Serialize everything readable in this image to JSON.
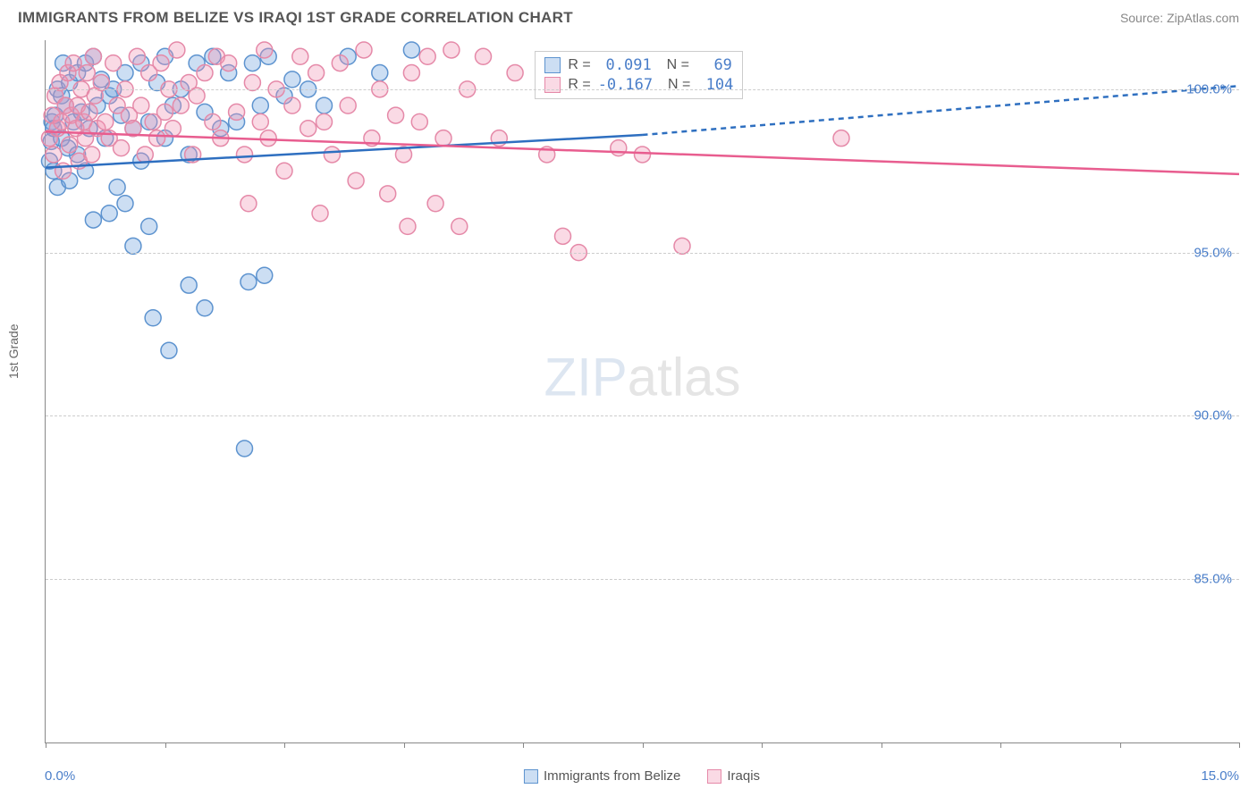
{
  "title": "IMMIGRANTS FROM BELIZE VS IRAQI 1ST GRADE CORRELATION CHART",
  "source": "Source: ZipAtlas.com",
  "ylabel": "1st Grade",
  "watermark": {
    "part1": "ZIP",
    "part2": "atlas"
  },
  "chart": {
    "type": "scatter",
    "xlim": [
      0,
      15
    ],
    "ylim": [
      80,
      101.5
    ],
    "xticks": [
      0,
      1.5,
      3,
      4.5,
      6,
      7.5,
      9,
      10.5,
      12,
      13.5,
      15
    ],
    "yticks": [
      85,
      90,
      95,
      100
    ],
    "ytick_labels": [
      "85.0%",
      "90.0%",
      "95.0%",
      "100.0%"
    ],
    "xmin_label": "0.0%",
    "xmax_label": "15.0%",
    "background": "#ffffff",
    "grid_color": "#cccccc",
    "marker_radius": 9,
    "marker_stroke_width": 1.5,
    "line_width": 2.5,
    "dash_pattern": "6,5"
  },
  "series": [
    {
      "name": "Immigrants from Belize",
      "color_fill": "rgba(110,160,220,0.35)",
      "color_stroke": "#5d93cf",
      "line_color": "#2e6fc0",
      "R": "0.091",
      "N": "69",
      "trend": {
        "x1": 0,
        "y1": 97.6,
        "x2_solid": 7.5,
        "y2_solid": 98.6,
        "x2_dash": 15,
        "y2_dash": 100.1
      },
      "points": [
        [
          0.05,
          97.8
        ],
        [
          0.07,
          98.4
        ],
        [
          0.08,
          99.0
        ],
        [
          0.1,
          97.5
        ],
        [
          0.1,
          98.8
        ],
        [
          0.12,
          99.2
        ],
        [
          0.15,
          100.0
        ],
        [
          0.15,
          97.0
        ],
        [
          0.2,
          98.5
        ],
        [
          0.2,
          99.8
        ],
        [
          0.22,
          100.8
        ],
        [
          0.25,
          99.5
        ],
        [
          0.28,
          98.2
        ],
        [
          0.3,
          100.2
        ],
        [
          0.3,
          97.2
        ],
        [
          0.35,
          99.0
        ],
        [
          0.4,
          100.5
        ],
        [
          0.4,
          98.0
        ],
        [
          0.45,
          99.3
        ],
        [
          0.5,
          100.8
        ],
        [
          0.5,
          97.5
        ],
        [
          0.55,
          98.8
        ],
        [
          0.6,
          101.0
        ],
        [
          0.6,
          96.0
        ],
        [
          0.65,
          99.5
        ],
        [
          0.7,
          100.3
        ],
        [
          0.75,
          98.5
        ],
        [
          0.8,
          99.8
        ],
        [
          0.8,
          96.2
        ],
        [
          0.85,
          100.0
        ],
        [
          0.9,
          97.0
        ],
        [
          0.95,
          99.2
        ],
        [
          1.0,
          100.5
        ],
        [
          1.0,
          96.5
        ],
        [
          1.1,
          98.8
        ],
        [
          1.1,
          95.2
        ],
        [
          1.2,
          100.8
        ],
        [
          1.2,
          97.8
        ],
        [
          1.3,
          99.0
        ],
        [
          1.3,
          95.8
        ],
        [
          1.35,
          93.0
        ],
        [
          1.4,
          100.2
        ],
        [
          1.5,
          98.5
        ],
        [
          1.5,
          101.0
        ],
        [
          1.55,
          92.0
        ],
        [
          1.6,
          99.5
        ],
        [
          1.7,
          100.0
        ],
        [
          1.8,
          94.0
        ],
        [
          1.8,
          98.0
        ],
        [
          1.9,
          100.8
        ],
        [
          2.0,
          93.3
        ],
        [
          2.0,
          99.3
        ],
        [
          2.1,
          101.0
        ],
        [
          2.2,
          98.8
        ],
        [
          2.3,
          100.5
        ],
        [
          2.4,
          99.0
        ],
        [
          2.5,
          89.0
        ],
        [
          2.55,
          94.1
        ],
        [
          2.6,
          100.8
        ],
        [
          2.7,
          99.5
        ],
        [
          2.75,
          94.3
        ],
        [
          2.8,
          101.0
        ],
        [
          3.0,
          99.8
        ],
        [
          3.1,
          100.3
        ],
        [
          3.3,
          100.0
        ],
        [
          3.5,
          99.5
        ],
        [
          3.8,
          101.0
        ],
        [
          4.2,
          100.5
        ],
        [
          4.6,
          101.2
        ]
      ]
    },
    {
      "name": "Iraqis",
      "color_fill": "rgba(240,150,180,0.35)",
      "color_stroke": "#e589a8",
      "line_color": "#e85d8f",
      "R": "-0.167",
      "N": "104",
      "trend": {
        "x1": 0,
        "y1": 98.7,
        "x2_solid": 15,
        "y2_solid": 97.4,
        "x2_dash": 15,
        "y2_dash": 97.4
      },
      "points": [
        [
          0.05,
          98.5
        ],
        [
          0.08,
          99.2
        ],
        [
          0.1,
          98.0
        ],
        [
          0.12,
          99.8
        ],
        [
          0.15,
          98.8
        ],
        [
          0.18,
          100.2
        ],
        [
          0.2,
          99.0
        ],
        [
          0.22,
          97.5
        ],
        [
          0.25,
          99.5
        ],
        [
          0.28,
          100.5
        ],
        [
          0.3,
          98.3
        ],
        [
          0.32,
          99.2
        ],
        [
          0.35,
          100.8
        ],
        [
          0.38,
          98.8
        ],
        [
          0.4,
          99.5
        ],
        [
          0.42,
          97.8
        ],
        [
          0.45,
          100.0
        ],
        [
          0.48,
          99.0
        ],
        [
          0.5,
          98.5
        ],
        [
          0.52,
          100.5
        ],
        [
          0.55,
          99.3
        ],
        [
          0.58,
          98.0
        ],
        [
          0.6,
          101.0
        ],
        [
          0.62,
          99.8
        ],
        [
          0.65,
          98.8
        ],
        [
          0.7,
          100.2
        ],
        [
          0.75,
          99.0
        ],
        [
          0.8,
          98.5
        ],
        [
          0.85,
          100.8
        ],
        [
          0.9,
          99.5
        ],
        [
          0.95,
          98.2
        ],
        [
          1.0,
          100.0
        ],
        [
          1.05,
          99.2
        ],
        [
          1.1,
          98.8
        ],
        [
          1.15,
          101.0
        ],
        [
          1.2,
          99.5
        ],
        [
          1.25,
          98.0
        ],
        [
          1.3,
          100.5
        ],
        [
          1.35,
          99.0
        ],
        [
          1.4,
          98.5
        ],
        [
          1.45,
          100.8
        ],
        [
          1.5,
          99.3
        ],
        [
          1.55,
          100.0
        ],
        [
          1.6,
          98.8
        ],
        [
          1.65,
          101.2
        ],
        [
          1.7,
          99.5
        ],
        [
          1.8,
          100.2
        ],
        [
          1.85,
          98.0
        ],
        [
          1.9,
          99.8
        ],
        [
          2.0,
          100.5
        ],
        [
          2.1,
          99.0
        ],
        [
          2.15,
          101.0
        ],
        [
          2.2,
          98.5
        ],
        [
          2.3,
          100.8
        ],
        [
          2.4,
          99.3
        ],
        [
          2.5,
          98.0
        ],
        [
          2.55,
          96.5
        ],
        [
          2.6,
          100.2
        ],
        [
          2.7,
          99.0
        ],
        [
          2.75,
          101.2
        ],
        [
          2.8,
          98.5
        ],
        [
          2.9,
          100.0
        ],
        [
          3.0,
          97.5
        ],
        [
          3.1,
          99.5
        ],
        [
          3.2,
          101.0
        ],
        [
          3.3,
          98.8
        ],
        [
          3.4,
          100.5
        ],
        [
          3.45,
          96.2
        ],
        [
          3.5,
          99.0
        ],
        [
          3.6,
          98.0
        ],
        [
          3.7,
          100.8
        ],
        [
          3.8,
          99.5
        ],
        [
          3.9,
          97.2
        ],
        [
          4.0,
          101.2
        ],
        [
          4.1,
          98.5
        ],
        [
          4.2,
          100.0
        ],
        [
          4.3,
          96.8
        ],
        [
          4.4,
          99.2
        ],
        [
          4.5,
          98.0
        ],
        [
          4.55,
          95.8
        ],
        [
          4.6,
          100.5
        ],
        [
          4.7,
          99.0
        ],
        [
          4.8,
          101.0
        ],
        [
          4.9,
          96.5
        ],
        [
          5.0,
          98.5
        ],
        [
          5.1,
          101.2
        ],
        [
          5.2,
          95.8
        ],
        [
          5.3,
          100.0
        ],
        [
          5.5,
          101.0
        ],
        [
          5.7,
          98.5
        ],
        [
          5.9,
          100.5
        ],
        [
          6.3,
          98.0
        ],
        [
          6.5,
          95.5
        ],
        [
          6.7,
          95.0
        ],
        [
          7.2,
          98.2
        ],
        [
          7.5,
          98.0
        ],
        [
          8.0,
          95.2
        ],
        [
          10.0,
          98.5
        ]
      ]
    }
  ],
  "legend_bottom": [
    {
      "label": "Immigrants from Belize",
      "fill": "rgba(110,160,220,0.35)",
      "stroke": "#5d93cf"
    },
    {
      "label": "Iraqis",
      "fill": "rgba(240,150,180,0.35)",
      "stroke": "#e589a8"
    }
  ]
}
